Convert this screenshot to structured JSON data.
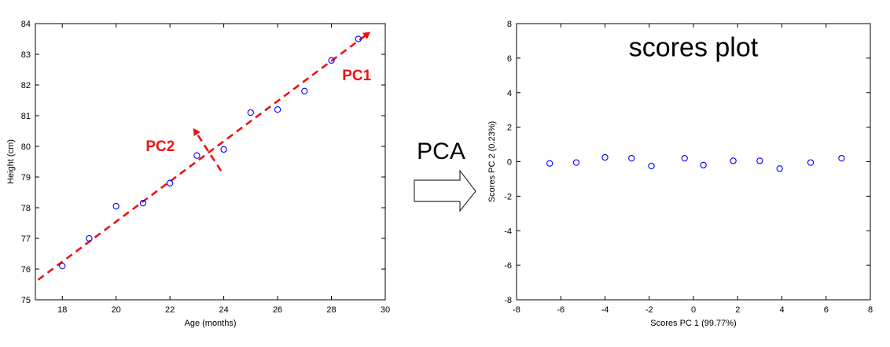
{
  "colors": {
    "marker": "#0000ff",
    "arrow": "#ee1111",
    "axis": "#000000"
  },
  "chart_data": [
    {
      "type": "scatter",
      "title": "",
      "xlabel": "Age (months)",
      "ylabel": "Height (cm)",
      "xlim": [
        17,
        30
      ],
      "ylim": [
        75,
        84
      ],
      "xticks": [
        18,
        20,
        22,
        24,
        26,
        28,
        30
      ],
      "yticks": [
        75,
        76,
        77,
        78,
        79,
        80,
        81,
        82,
        83,
        84
      ],
      "points": [
        {
          "x": 18,
          "y": 76.1
        },
        {
          "x": 19,
          "y": 77.0
        },
        {
          "x": 20,
          "y": 78.05
        },
        {
          "x": 21,
          "y": 78.15
        },
        {
          "x": 22,
          "y": 78.8
        },
        {
          "x": 23,
          "y": 79.7
        },
        {
          "x": 24,
          "y": 79.9
        },
        {
          "x": 25,
          "y": 81.1
        },
        {
          "x": 26,
          "y": 81.2
        },
        {
          "x": 27,
          "y": 81.8
        },
        {
          "x": 28,
          "y": 82.8
        },
        {
          "x": 29,
          "y": 83.5
        }
      ],
      "annotations": {
        "pc1": {
          "label": "PC1",
          "from": [
            17.1,
            75.65
          ],
          "to": [
            29.4,
            83.7
          ]
        },
        "pc2": {
          "label": "PC2",
          "from": [
            23.9,
            79.2
          ],
          "to": [
            22.9,
            80.55
          ]
        }
      }
    },
    {
      "type": "scatter",
      "title": "scores plot",
      "xlabel": "Scores PC 1 (99.77%)",
      "ylabel": "Scores PC 2 (0.23%)",
      "xlim": [
        -8,
        8
      ],
      "ylim": [
        -8,
        8
      ],
      "xticks": [
        -8,
        -6,
        -4,
        -2,
        0,
        2,
        4,
        6,
        8
      ],
      "yticks": [
        -8,
        -6,
        -4,
        -2,
        0,
        2,
        4,
        6,
        8
      ],
      "points": [
        {
          "x": -6.5,
          "y": -0.1
        },
        {
          "x": -5.3,
          "y": -0.05
        },
        {
          "x": -4.0,
          "y": 0.25
        },
        {
          "x": -2.8,
          "y": 0.2
        },
        {
          "x": -1.9,
          "y": -0.25
        },
        {
          "x": -0.4,
          "y": 0.2
        },
        {
          "x": 0.45,
          "y": -0.2
        },
        {
          "x": 1.8,
          "y": 0.05
        },
        {
          "x": 3.0,
          "y": 0.05
        },
        {
          "x": 3.9,
          "y": -0.4
        },
        {
          "x": 5.3,
          "y": -0.05
        },
        {
          "x": 6.7,
          "y": 0.2
        }
      ]
    }
  ],
  "transform": {
    "label": "PCA"
  }
}
